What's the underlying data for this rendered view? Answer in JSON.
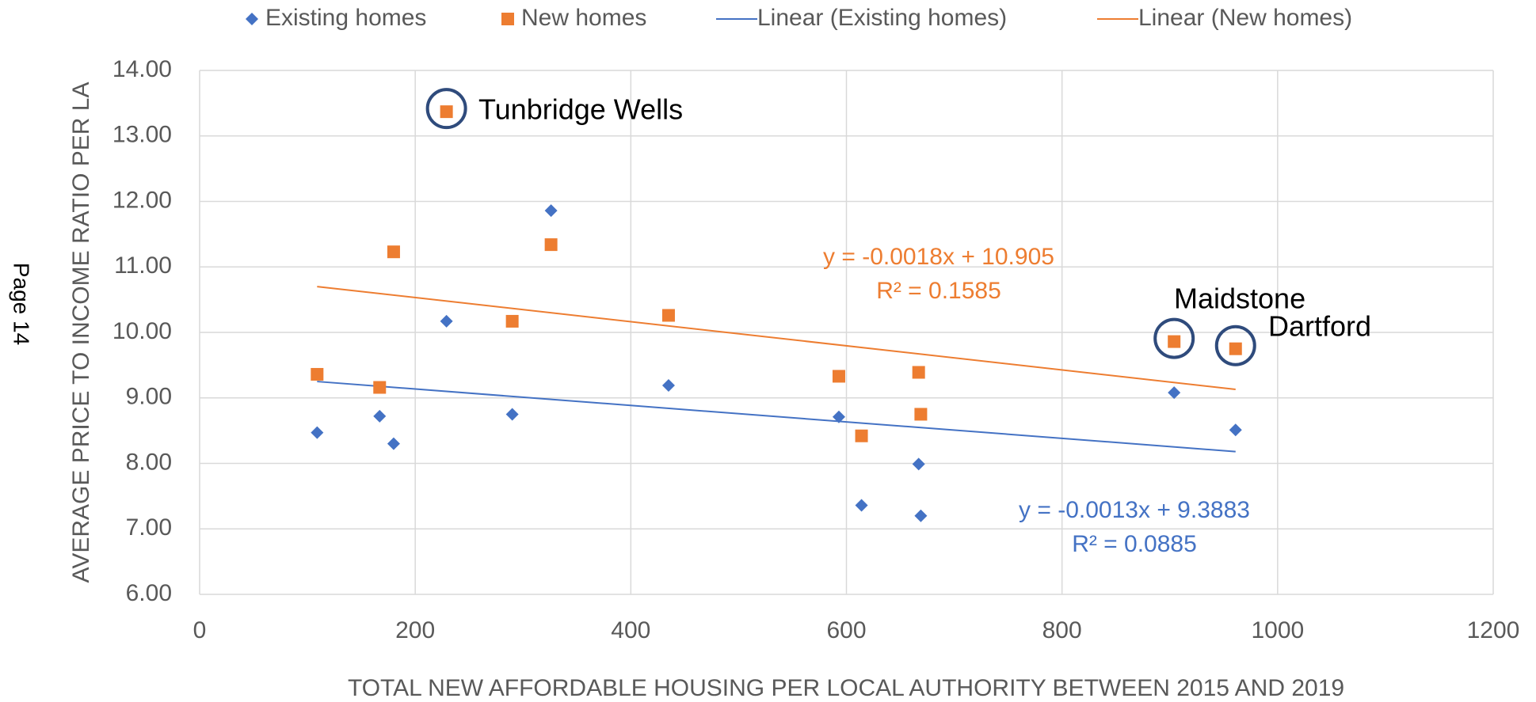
{
  "page_label": "Page 14",
  "chart_data": {
    "type": "scatter",
    "xlabel": "TOTAL NEW AFFORDABLE HOUSING PER LOCAL AUTHORITY BETWEEN 2015 AND 2019",
    "ylabel": "AVERAGE PRICE TO INCOME RATIO PER LA",
    "xlim": [
      0,
      1200
    ],
    "xticks": [
      0,
      200,
      400,
      600,
      800,
      1000,
      1200
    ],
    "ylim": [
      6,
      14
    ],
    "yticks": [
      {
        "value": 6,
        "label": "6.00"
      },
      {
        "value": 7,
        "label": "7.00"
      },
      {
        "value": 8,
        "label": "8.00"
      },
      {
        "value": 9,
        "label": "9.00"
      },
      {
        "value": 10,
        "label": "10.00"
      },
      {
        "value": 11,
        "label": "11.00"
      },
      {
        "value": 12,
        "label": "12.00"
      },
      {
        "value": 13,
        "label": "13.00"
      },
      {
        "value": 14,
        "label": "14.00"
      }
    ],
    "grid": true,
    "series": [
      {
        "name": "Existing homes",
        "color": "#4472c4",
        "marker": "diamond",
        "x": [
          109,
          167,
          180,
          229,
          290,
          326,
          435,
          593,
          614,
          667,
          669,
          904,
          961
        ],
        "values": [
          8.47,
          8.72,
          8.3,
          10.17,
          8.75,
          11.86,
          9.19,
          8.71,
          7.36,
          7.99,
          7.2,
          9.08,
          8.51
        ]
      },
      {
        "name": "New homes",
        "color": "#ed7d31",
        "marker": "square",
        "x": [
          109,
          167,
          180,
          229,
          290,
          326,
          435,
          593,
          614,
          667,
          669,
          904,
          961
        ],
        "values": [
          9.36,
          9.16,
          11.23,
          13.37,
          10.17,
          11.34,
          10.26,
          9.33,
          8.42,
          9.39,
          8.75,
          9.86,
          9.75
        ]
      }
    ],
    "trendlines": [
      {
        "name": "Linear (Existing homes)",
        "color": "#4472c4",
        "x": [
          109,
          961
        ],
        "values": [
          9.25,
          8.18
        ],
        "equation": "y = -0.0013x + 9.3883",
        "r2": "R² = 0.0885"
      },
      {
        "name": "Linear (New homes)",
        "color": "#ed7d31",
        "x": [
          109,
          961
        ],
        "values": [
          10.7,
          9.13
        ],
        "equation": "y = -0.0018x + 10.905",
        "r2": "R² = 0.1585"
      }
    ],
    "annotations": [
      "Tunbridge Wells",
      "Maidstone",
      "Dartford"
    ],
    "annotation_color": "#2f4b7c"
  }
}
